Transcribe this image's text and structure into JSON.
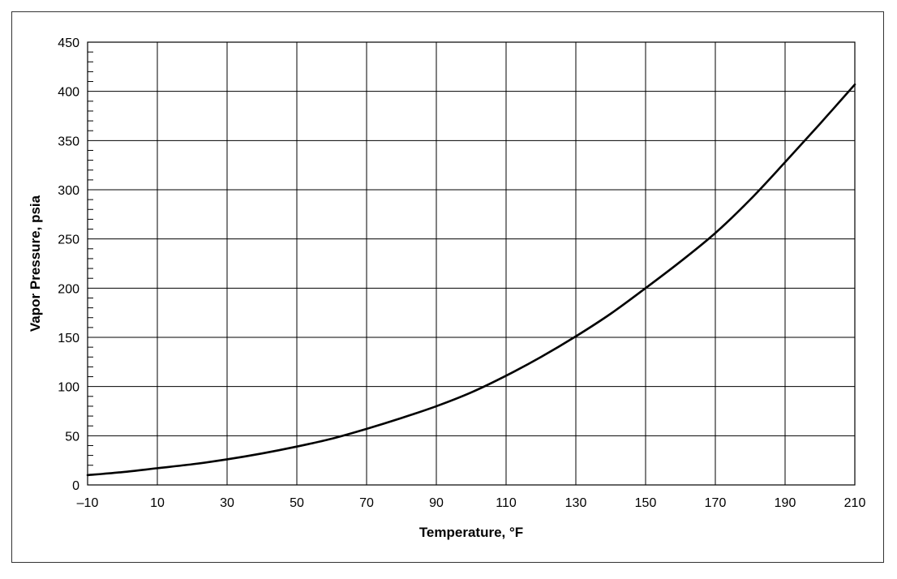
{
  "chart_data": {
    "type": "line",
    "title": "",
    "xlabel": "Temperature, °F",
    "ylabel": "Vapor Pressure, psia",
    "xlim": [
      -10,
      210
    ],
    "ylim": [
      0,
      450
    ],
    "x_ticks": [
      -10,
      10,
      30,
      50,
      70,
      90,
      110,
      130,
      150,
      170,
      190,
      210
    ],
    "x_tick_labels": [
      "–10",
      "10",
      "30",
      "50",
      "70",
      "90",
      "110",
      "130",
      "150",
      "170",
      "190",
      "210"
    ],
    "y_ticks": [
      0,
      50,
      100,
      150,
      200,
      250,
      300,
      350,
      400,
      450
    ],
    "y_tick_labels": [
      "0",
      "50",
      "100",
      "150",
      "200",
      "250",
      "300",
      "350",
      "400",
      "450"
    ],
    "y_minor_step": 10,
    "grid": true,
    "series": [
      {
        "color": "#000000",
        "x": [
          -10,
          0,
          10,
          20,
          30,
          40,
          50,
          60,
          70,
          80,
          90,
          100,
          110,
          120,
          130,
          140,
          150,
          160,
          170,
          180,
          190,
          200,
          210
        ],
        "y": [
          10,
          13,
          17,
          21,
          26,
          32,
          39,
          47,
          57,
          68,
          80,
          94,
          111,
          130,
          151,
          174,
          200,
          227,
          256,
          290,
          328,
          367,
          407
        ]
      }
    ]
  }
}
